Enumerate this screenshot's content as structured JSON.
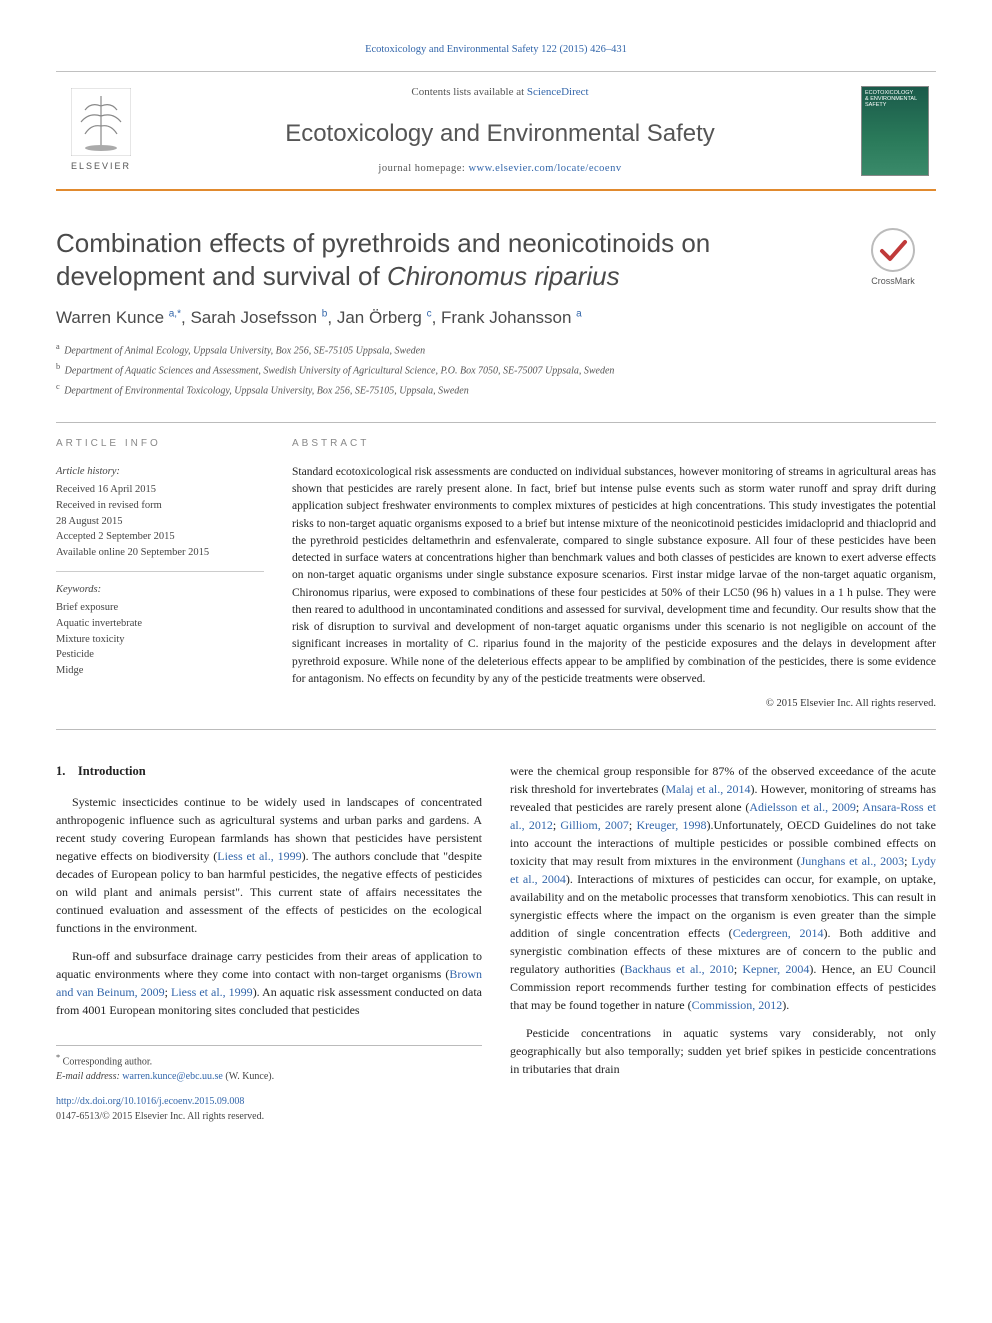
{
  "citation": {
    "prefix": "Ecotoxicology and Environmental Safety 122 (2015) 426–431",
    "link_text": "Ecotoxicology and Environmental Safety 122 (2015) 426–431"
  },
  "header": {
    "contents_prefix": "Contents lists available at ",
    "contents_link": "ScienceDirect",
    "journal_title": "Ecotoxicology and Environmental Safety",
    "homepage_prefix": "journal homepage: ",
    "homepage_link": "www.elsevier.com/locate/ecoenv",
    "publisher_name": "ELSEVIER",
    "cover_text_top": "ECOTOXICOLOGY",
    "cover_text_bottom": "& ENVIRONMENTAL SAFETY"
  },
  "article": {
    "title_plain": "Combination effects of pyrethroids and neonicotinoids on development and survival of ",
    "title_italic": "Chironomus riparius",
    "crossmark_label": "CrossMark",
    "authors_html": "Warren Kunce <sup>a,*</sup>, Sarah Josefsson <sup>b</sup>, Jan Örberg <sup>c</sup>, Frank Johansson <sup>a</sup>",
    "authors": [
      {
        "name": "Warren Kunce",
        "sup": "a,*"
      },
      {
        "name": "Sarah Josefsson",
        "sup": "b"
      },
      {
        "name": "Jan Örberg",
        "sup": "c"
      },
      {
        "name": "Frank Johansson",
        "sup": "a"
      }
    ],
    "affiliations": [
      {
        "sup": "a",
        "text": "Department of Animal Ecology, Uppsala University, Box 256, SE-75105 Uppsala, Sweden"
      },
      {
        "sup": "b",
        "text": "Department of Aquatic Sciences and Assessment, Swedish University of Agricultural Science, P.O. Box 7050, SE-75007 Uppsala, Sweden"
      },
      {
        "sup": "c",
        "text": "Department of Environmental Toxicology, Uppsala University, Box 256, SE-75105, Uppsala, Sweden"
      }
    ]
  },
  "info": {
    "heading": "ARTICLE INFO",
    "history_label": "Article history:",
    "history": [
      "Received 16 April 2015",
      "Received in revised form",
      "28 August 2015",
      "Accepted 2 September 2015",
      "Available online 20 September 2015"
    ],
    "keywords_label": "Keywords:",
    "keywords": [
      "Brief exposure",
      "Aquatic invertebrate",
      "Mixture toxicity",
      "Pesticide",
      "Midge"
    ]
  },
  "abstract": {
    "heading": "ABSTRACT",
    "text": "Standard ecotoxicological risk assessments are conducted on individual substances, however monitoring of streams in agricultural areas has shown that pesticides are rarely present alone. In fact, brief but intense pulse events such as storm water runoff and spray drift during application subject freshwater environments to complex mixtures of pesticides at high concentrations. This study investigates the potential risks to non-target aquatic organisms exposed to a brief but intense mixture of the neonicotinoid pesticides imidacloprid and thiacloprid and the pyrethroid pesticides deltamethrin and esfenvalerate, compared to single substance exposure. All four of these pesticides have been detected in surface waters at concentrations higher than benchmark values and both classes of pesticides are known to exert adverse effects on non-target aquatic organisms under single substance exposure scenarios. First instar midge larvae of the non-target aquatic organism, Chironomus riparius, were exposed to combinations of these four pesticides at 50% of their LC50 (96 h) values in a 1 h pulse. They were then reared to adulthood in uncontaminated conditions and assessed for survival, development time and fecundity. Our results show that the risk of disruption to survival and development of non-target aquatic organisms under this scenario is not negligible on account of the significant increases in mortality of C. riparius found in the majority of the pesticide exposures and the delays in development after pyrethroid exposure. While none of the deleterious effects appear to be amplified by combination of the pesticides, there is some evidence for antagonism. No effects on fecundity by any of the pesticide treatments were observed.",
    "copyright": "© 2015 Elsevier Inc. All rights reserved."
  },
  "body": {
    "section_number": "1.",
    "section_title": "Introduction",
    "col1": {
      "p1": "Systemic insecticides continue to be widely used in landscapes of concentrated anthropogenic influence such as agricultural systems and urban parks and gardens. A recent study covering European farmlands has shown that pesticides have persistent negative effects on biodiversity (",
      "p1_link": "Liess et al., 1999",
      "p1_tail": "). The authors conclude that \"despite decades of European policy to ban harmful pesticides, the negative effects of pesticides on wild plant and animals persist\". This current state of affairs necessitates the continued evaluation and assessment of the effects of pesticides on the ecological functions in the environment.",
      "p2_a": "Run-off and subsurface drainage carry pesticides from their areas of application to aquatic environments where they come into contact with non-target organisms (",
      "p2_link1": "Brown and van Beinum, 2009",
      "p2_sep": "; ",
      "p2_link2": "Liess et al., 1999",
      "p2_b": "). An aquatic risk assessment conducted on data from 4001 European monitoring sites concluded that pesticides"
    },
    "col2": {
      "p1_a": "were the chemical group responsible for 87% of the observed exceedance of the acute risk threshold for invertebrates (",
      "p1_link1": "Malaj et al., 2014",
      "p1_b": "). However, monitoring of streams has revealed that pesticides are rarely present alone (",
      "p1_link2": "Adielsson et al., 2009",
      "p1_s1": "; ",
      "p1_link3": "Ansara-Ross et al., 2012",
      "p1_s2": "; ",
      "p1_link4": "Gilliom, 2007",
      "p1_s3": "; ",
      "p1_link5": "Kreuger, 1998",
      "p1_c": ").Unfortunately, OECD Guidelines do not take into account the interactions of multiple pesticides or possible combined effects on toxicity that may result from mixtures in the environment (",
      "p1_link6": "Junghans et al., 2003",
      "p1_s4": "; ",
      "p1_link7": "Lydy et al., 2004",
      "p1_d": "). Interactions of mixtures of pesticides can occur, for example, on uptake, availability and on the metabolic processes that transform xenobiotics. This can result in synergistic effects where the impact on the organism is even greater than the simple addition of single concentration effects (",
      "p1_link8": "Cedergreen, 2014",
      "p1_e": "). Both additive and synergistic combination effects of these mixtures are of concern to the public and regulatory authorities (",
      "p1_link9": "Backhaus et al., 2010",
      "p1_s5": "; ",
      "p1_link10": "Kepner, 2004",
      "p1_f": "). Hence, an EU Council Commission report recommends further testing for combination effects of pesticides that may be found together in nature (",
      "p1_link11": "Commission, 2012",
      "p1_g": ").",
      "p2": "Pesticide concentrations in aquatic systems vary considerably, not only geographically but also temporally; sudden yet brief spikes in pesticide concentrations in tributaries that drain"
    }
  },
  "footnotes": {
    "corr_label": "* Corresponding author.",
    "email_label": "E-mail address: ",
    "email": "warren.kunce@ebc.uu.se",
    "email_suffix": " (W. Kunce).",
    "doi_link": "http://dx.doi.org/10.1016/j.ecoenv.2015.09.008",
    "issn_line": "0147-6513/© 2015 Elsevier Inc. All rights reserved."
  },
  "colors": {
    "accent_orange": "#e18a2e",
    "link_blue": "#3366aa",
    "text_gray": "#4a4a4a",
    "light_gray": "#888888"
  }
}
